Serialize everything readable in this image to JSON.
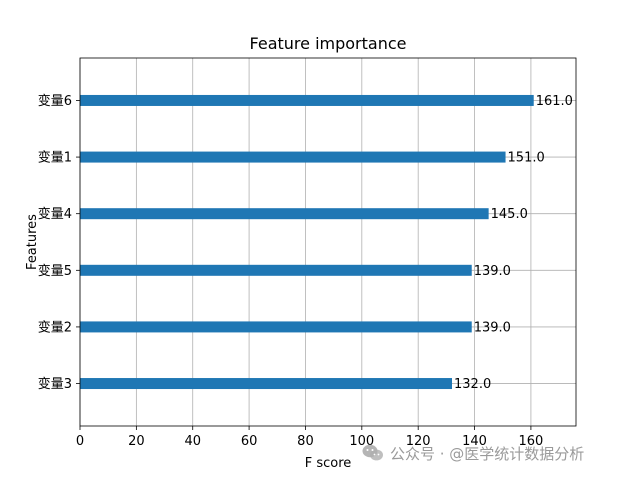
{
  "chart_data": {
    "type": "bar",
    "orientation": "horizontal",
    "title": "Feature importance",
    "xlabel": "F score",
    "ylabel": "Features",
    "xlim": [
      0,
      176
    ],
    "ylim": [
      -0.75,
      5.75
    ],
    "xticks": [
      0,
      20,
      40,
      60,
      80,
      100,
      120,
      140,
      160
    ],
    "grid": true,
    "bar_color": "#1f77b4",
    "categories": [
      "变量3",
      "变量2",
      "变量5",
      "变量4",
      "变量1",
      "变量6"
    ],
    "values": [
      132.0,
      139.0,
      139.0,
      145.0,
      151.0,
      161.0
    ],
    "value_labels": [
      "132.0",
      "139.0",
      "139.0",
      "145.0",
      "151.0",
      "161.0"
    ]
  },
  "watermark": {
    "text": "公众号 · @医学统计数据分析",
    "icon": "wechat-icon"
  }
}
